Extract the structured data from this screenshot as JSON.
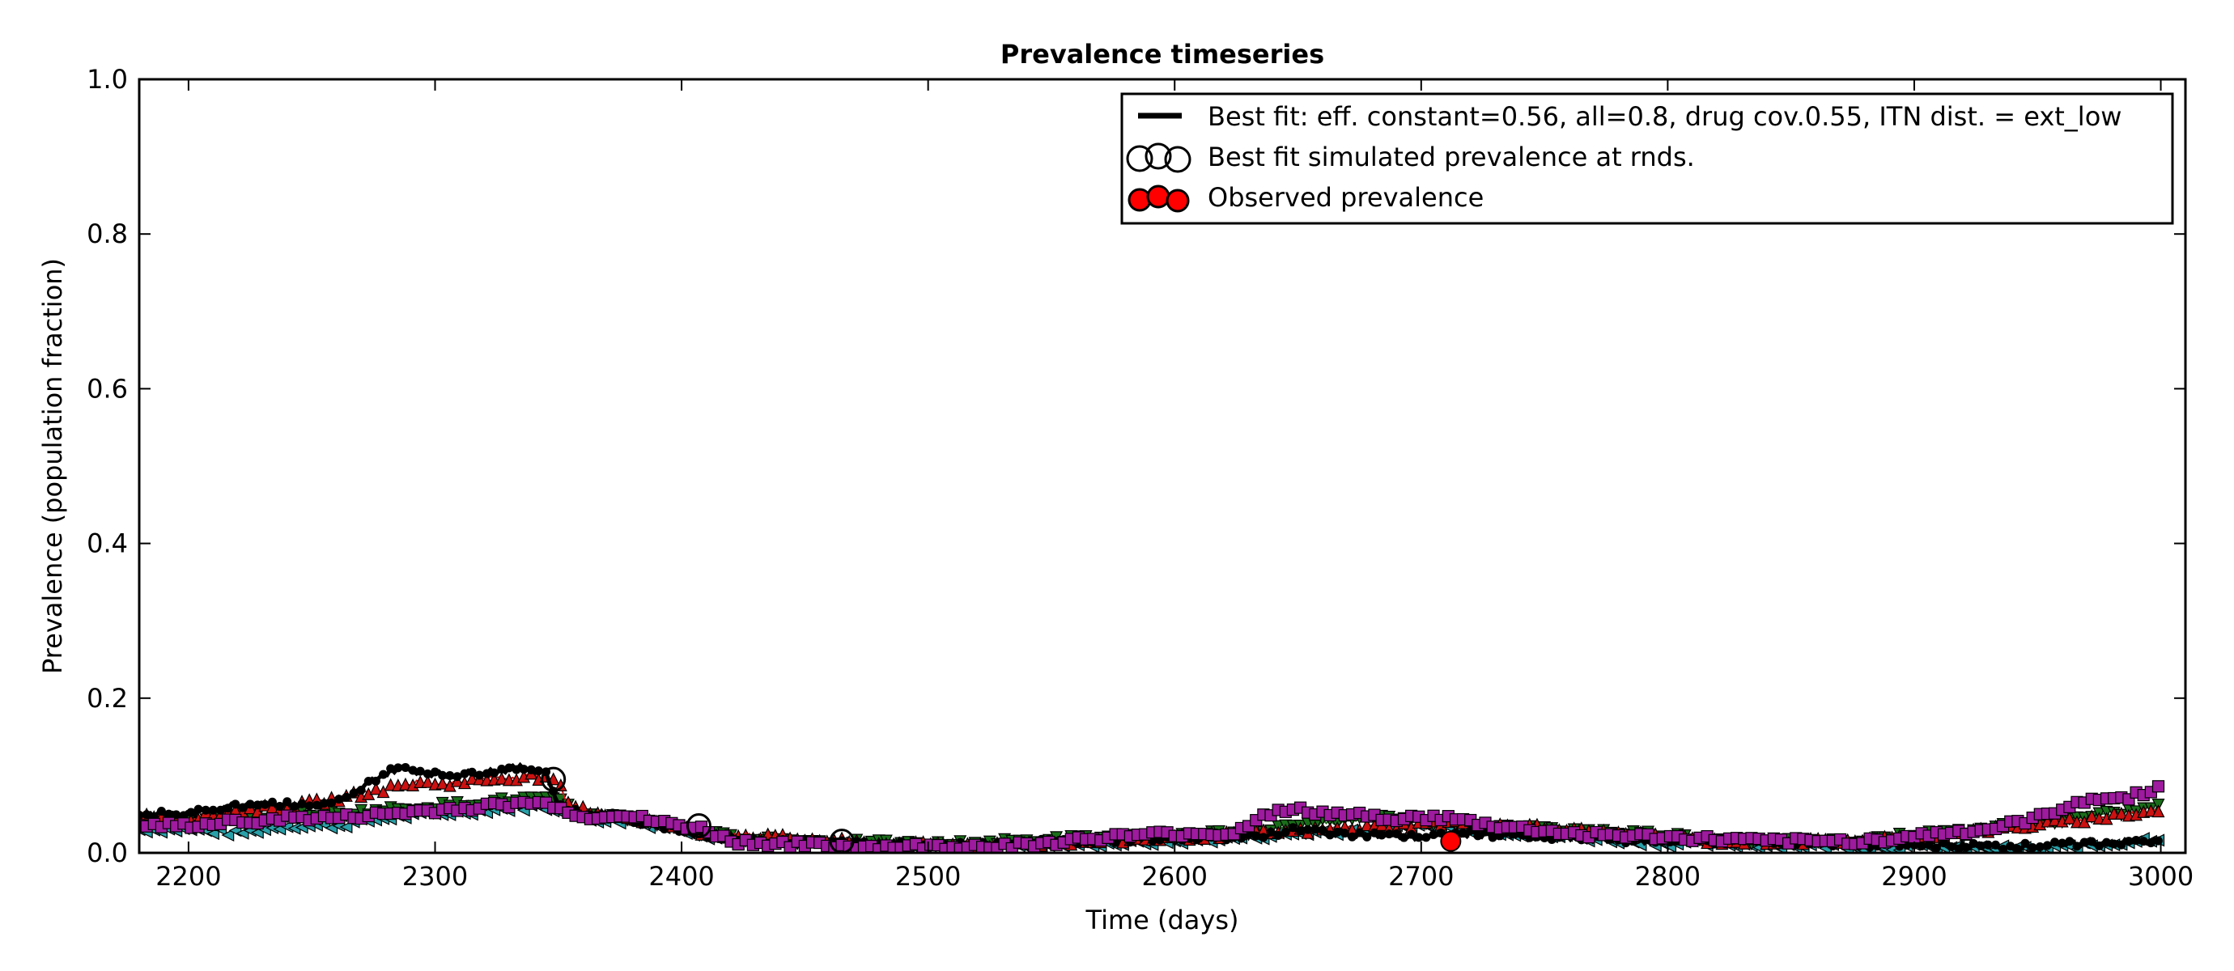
{
  "chart_data": {
    "type": "line",
    "title": "Prevalence timeseries",
    "xlabel": "Time (days)",
    "ylabel": "Prevalence (population fraction)",
    "xlim": [
      2180,
      3010
    ],
    "ylim": [
      0.0,
      1.0
    ],
    "xticks": [
      2200,
      2300,
      2400,
      2500,
      2600,
      2700,
      2800,
      2900,
      3000
    ],
    "yticks": [
      0.0,
      0.2,
      0.4,
      0.6,
      0.8,
      1.0
    ],
    "xtick_labels": [
      "2200",
      "2300",
      "2400",
      "2500",
      "2600",
      "2700",
      "2800",
      "2900",
      "3000"
    ],
    "ytick_labels": [
      "0.0",
      "0.2",
      "0.4",
      "0.6",
      "0.8",
      "1.0"
    ],
    "legend_position": "top-right",
    "legend": [
      {
        "label": "Best fit: eff. constant=0.56, all=0.8, drug cov.0.55, ITN dist. = ext_low",
        "kind": "line",
        "color": "#000000"
      },
      {
        "label": "Best fit simulated prevalence at rnds.",
        "kind": "open-circle",
        "color": "#000000"
      },
      {
        "label": "Observed prevalence",
        "kind": "filled-circle",
        "color": "#ff0000"
      }
    ],
    "series": [
      {
        "role": "best-fit",
        "color": "#000000",
        "marker": "circle-filled-small",
        "points": [
          [
            2180,
            0.05
          ],
          [
            2200,
            0.05
          ],
          [
            2215,
            0.06
          ],
          [
            2230,
            0.065
          ],
          [
            2250,
            0.06
          ],
          [
            2265,
            0.07
          ],
          [
            2275,
            0.095
          ],
          [
            2285,
            0.11
          ],
          [
            2295,
            0.105
          ],
          [
            2305,
            0.1
          ],
          [
            2320,
            0.105
          ],
          [
            2335,
            0.11
          ],
          [
            2345,
            0.105
          ],
          [
            2350,
            0.06
          ],
          [
            2360,
            0.05
          ],
          [
            2370,
            0.05
          ],
          [
            2385,
            0.04
          ],
          [
            2400,
            0.03
          ],
          [
            2410,
            0.025
          ],
          [
            2415,
            0.02
          ],
          [
            2430,
            0.015
          ],
          [
            2450,
            0.015
          ],
          [
            2470,
            0.012
          ],
          [
            2500,
            0.01
          ],
          [
            2530,
            0.012
          ],
          [
            2560,
            0.015
          ],
          [
            2600,
            0.02
          ],
          [
            2630,
            0.02
          ],
          [
            2650,
            0.03
          ],
          [
            2670,
            0.025
          ],
          [
            2700,
            0.02
          ],
          [
            2720,
            0.025
          ],
          [
            2750,
            0.02
          ],
          [
            2800,
            0.015
          ],
          [
            2830,
            0.015
          ],
          [
            2860,
            0.012
          ],
          [
            2900,
            0.01
          ],
          [
            2940,
            0.008
          ],
          [
            2970,
            0.012
          ],
          [
            3000,
            0.015
          ]
        ]
      },
      {
        "role": "simulated-red",
        "color": "#cc1111",
        "marker": "triangle-up",
        "points": [
          [
            2180,
            0.05
          ],
          [
            2200,
            0.045
          ],
          [
            2220,
            0.055
          ],
          [
            2240,
            0.06
          ],
          [
            2260,
            0.07
          ],
          [
            2275,
            0.08
          ],
          [
            2290,
            0.09
          ],
          [
            2305,
            0.09
          ],
          [
            2320,
            0.095
          ],
          [
            2340,
            0.1
          ],
          [
            2350,
            0.09
          ],
          [
            2355,
            0.06
          ],
          [
            2370,
            0.05
          ],
          [
            2390,
            0.04
          ],
          [
            2410,
            0.025
          ],
          [
            2430,
            0.022
          ],
          [
            2450,
            0.018
          ],
          [
            2480,
            0.012
          ],
          [
            2500,
            0.01
          ],
          [
            2540,
            0.012
          ],
          [
            2570,
            0.015
          ],
          [
            2600,
            0.02
          ],
          [
            2630,
            0.025
          ],
          [
            2660,
            0.03
          ],
          [
            2690,
            0.035
          ],
          [
            2710,
            0.04
          ],
          [
            2740,
            0.035
          ],
          [
            2780,
            0.025
          ],
          [
            2820,
            0.015
          ],
          [
            2860,
            0.015
          ],
          [
            2900,
            0.02
          ],
          [
            2930,
            0.03
          ],
          [
            2960,
            0.04
          ],
          [
            2985,
            0.05
          ],
          [
            3000,
            0.055
          ]
        ]
      },
      {
        "role": "simulated-green",
        "color": "#1a6e1a",
        "marker": "triangle-down",
        "points": [
          [
            2180,
            0.04
          ],
          [
            2200,
            0.04
          ],
          [
            2220,
            0.045
          ],
          [
            2240,
            0.05
          ],
          [
            2260,
            0.05
          ],
          [
            2280,
            0.055
          ],
          [
            2300,
            0.06
          ],
          [
            2320,
            0.065
          ],
          [
            2340,
            0.07
          ],
          [
            2352,
            0.065
          ],
          [
            2358,
            0.05
          ],
          [
            2380,
            0.045
          ],
          [
            2400,
            0.03
          ],
          [
            2420,
            0.02
          ],
          [
            2450,
            0.015
          ],
          [
            2480,
            0.012
          ],
          [
            2500,
            0.01
          ],
          [
            2540,
            0.015
          ],
          [
            2570,
            0.02
          ],
          [
            2600,
            0.02
          ],
          [
            2640,
            0.03
          ],
          [
            2660,
            0.04
          ],
          [
            2690,
            0.045
          ],
          [
            2720,
            0.035
          ],
          [
            2750,
            0.03
          ],
          [
            2790,
            0.025
          ],
          [
            2830,
            0.015
          ],
          [
            2870,
            0.015
          ],
          [
            2910,
            0.025
          ],
          [
            2940,
            0.035
          ],
          [
            2970,
            0.045
          ],
          [
            3000,
            0.06
          ]
        ]
      },
      {
        "role": "simulated-cyan",
        "color": "#2aa0a8",
        "marker": "triangle-left",
        "points": [
          [
            2180,
            0.03
          ],
          [
            2200,
            0.03
          ],
          [
            2220,
            0.025
          ],
          [
            2240,
            0.035
          ],
          [
            2260,
            0.035
          ],
          [
            2280,
            0.045
          ],
          [
            2300,
            0.05
          ],
          [
            2320,
            0.055
          ],
          [
            2340,
            0.06
          ],
          [
            2352,
            0.055
          ],
          [
            2358,
            0.045
          ],
          [
            2380,
            0.04
          ],
          [
            2400,
            0.03
          ],
          [
            2420,
            0.015
          ],
          [
            2450,
            0.01
          ],
          [
            2480,
            0.01
          ],
          [
            2500,
            0.008
          ],
          [
            2540,
            0.01
          ],
          [
            2580,
            0.012
          ],
          [
            2620,
            0.018
          ],
          [
            2650,
            0.025
          ],
          [
            2680,
            0.03
          ],
          [
            2700,
            0.035
          ],
          [
            2720,
            0.03
          ],
          [
            2760,
            0.02
          ],
          [
            2800,
            0.012
          ],
          [
            2840,
            0.01
          ],
          [
            2880,
            0.008
          ],
          [
            2920,
            0.006
          ],
          [
            2950,
            0.005
          ],
          [
            2975,
            0.01
          ],
          [
            3000,
            0.02
          ]
        ]
      },
      {
        "role": "simulated-magenta",
        "color": "#9e1a9e",
        "marker": "square",
        "points": [
          [
            2180,
            0.035
          ],
          [
            2200,
            0.035
          ],
          [
            2220,
            0.04
          ],
          [
            2240,
            0.045
          ],
          [
            2260,
            0.045
          ],
          [
            2280,
            0.05
          ],
          [
            2300,
            0.055
          ],
          [
            2320,
            0.06
          ],
          [
            2340,
            0.065
          ],
          [
            2352,
            0.06
          ],
          [
            2358,
            0.045
          ],
          [
            2375,
            0.05
          ],
          [
            2390,
            0.04
          ],
          [
            2410,
            0.03
          ],
          [
            2420,
            0.015
          ],
          [
            2450,
            0.01
          ],
          [
            2480,
            0.008
          ],
          [
            2500,
            0.008
          ],
          [
            2540,
            0.01
          ],
          [
            2570,
            0.02
          ],
          [
            2600,
            0.025
          ],
          [
            2625,
            0.025
          ],
          [
            2635,
            0.05
          ],
          [
            2650,
            0.055
          ],
          [
            2665,
            0.05
          ],
          [
            2690,
            0.045
          ],
          [
            2710,
            0.045
          ],
          [
            2730,
            0.035
          ],
          [
            2760,
            0.025
          ],
          [
            2800,
            0.02
          ],
          [
            2840,
            0.015
          ],
          [
            2880,
            0.015
          ],
          [
            2910,
            0.025
          ],
          [
            2930,
            0.03
          ],
          [
            2950,
            0.045
          ],
          [
            2970,
            0.07
          ],
          [
            2985,
            0.07
          ],
          [
            3000,
            0.085
          ]
        ]
      }
    ],
    "simulated_at_rounds": [
      [
        2348,
        0.095
      ],
      [
        2407,
        0.035
      ],
      [
        2465,
        0.015
      ]
    ],
    "observed": [
      [
        2712,
        0.015
      ]
    ]
  }
}
